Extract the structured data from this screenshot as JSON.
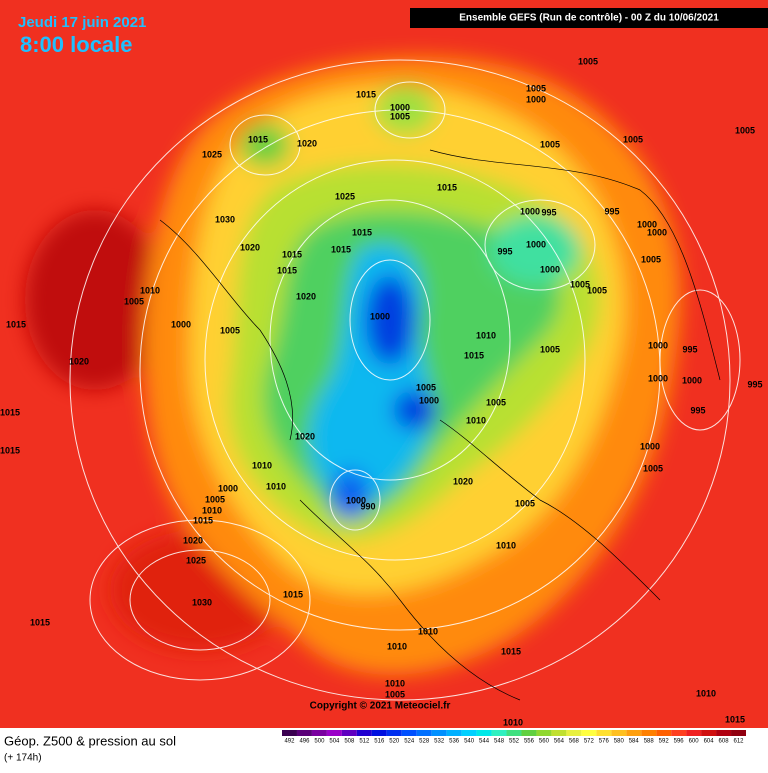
{
  "header": {
    "date": "Jeudi 17 juin 2021",
    "time": "8:00 locale",
    "run": "Ensemble GEFS  (Run de contrôle)  -  00 Z du 10/06/2021"
  },
  "footer": {
    "title": "Géop. Z500 & pression au sol",
    "lead": "(+ 174h)",
    "copyright": "Copyright © 2021 Meteociel.fr"
  },
  "scale": {
    "labels": [
      "492",
      "496",
      "500",
      "504",
      "508",
      "512",
      "516",
      "520",
      "524",
      "528",
      "532",
      "536",
      "540",
      "544",
      "548",
      "552",
      "556",
      "560",
      "564",
      "568",
      "572",
      "576",
      "580",
      "584",
      "588",
      "592",
      "596",
      "600",
      "604",
      "608",
      "612"
    ],
    "colors": [
      "#3a0050",
      "#5a0078",
      "#7a00a0",
      "#9a00c8",
      "#6000c0",
      "#2000d0",
      "#0010e0",
      "#0030f0",
      "#0050ff",
      "#0070ff",
      "#0090ff",
      "#00b0ff",
      "#00d0ff",
      "#00e8e8",
      "#30f0c0",
      "#40e080",
      "#60d040",
      "#90d830",
      "#c0e030",
      "#e8f040",
      "#ffff40",
      "#ffe030",
      "#ffc020",
      "#ffa010",
      "#ff8000",
      "#ff6000",
      "#ff4020",
      "#f02020",
      "#d01010",
      "#b00010",
      "#900010"
    ]
  },
  "isobars": [
    "1000",
    "1005",
    "1015",
    "1015",
    "1020",
    "1025",
    "1005",
    "1000",
    "1005",
    "1005",
    "1005",
    "1005",
    "1015",
    "1025",
    "1030",
    "1020",
    "1015",
    "1015",
    "1015",
    "1000",
    "995",
    "995",
    "1000",
    "1000",
    "1000",
    "995",
    "1000",
    "1005",
    "1005",
    "1005",
    "1015",
    "1020",
    "1010",
    "1005",
    "1015",
    "1000",
    "1005",
    "1000",
    "1010",
    "1015",
    "1005",
    "1000",
    "995",
    "1000",
    "1000",
    "995",
    "995",
    "1005",
    "1000",
    "1005",
    "1010",
    "1020",
    "1015",
    "1015",
    "1020",
    "1010",
    "1010",
    "1000",
    "1005",
    "1010",
    "1015",
    "1020",
    "1005",
    "1000",
    "990",
    "1000",
    "1005",
    "1010",
    "1020",
    "1025",
    "1030",
    "1015",
    "1015",
    "1010",
    "1010",
    "1015",
    "1010",
    "1005",
    "1010",
    "1010",
    "1015"
  ]
}
